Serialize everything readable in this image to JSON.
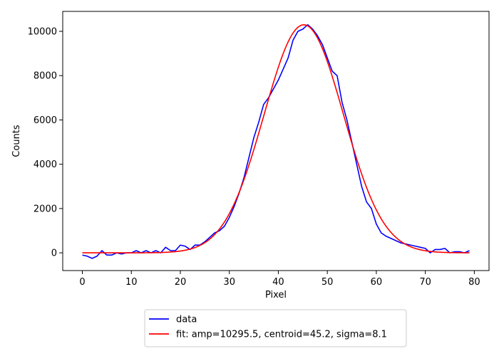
{
  "chart_data": {
    "type": "line",
    "title": "",
    "xlabel": "Pixel",
    "ylabel": "Counts",
    "xlim": [
      -4,
      83
    ],
    "ylim": [
      -800,
      10900
    ],
    "xticks": [
      0,
      10,
      20,
      30,
      40,
      50,
      60,
      70,
      80
    ],
    "yticks": [
      0,
      2000,
      4000,
      6000,
      8000,
      10000
    ],
    "grid": false,
    "legend_position": "below",
    "series": [
      {
        "name": "data",
        "color": "#0000ff",
        "x": [
          0,
          1,
          2,
          3,
          4,
          5,
          6,
          7,
          8,
          9,
          10,
          11,
          12,
          13,
          14,
          15,
          16,
          17,
          18,
          19,
          20,
          21,
          22,
          23,
          24,
          25,
          26,
          27,
          28,
          29,
          30,
          31,
          32,
          33,
          34,
          35,
          36,
          37,
          38,
          39,
          40,
          41,
          42,
          43,
          44,
          45,
          46,
          47,
          48,
          49,
          50,
          51,
          52,
          53,
          54,
          55,
          56,
          57,
          58,
          59,
          60,
          61,
          62,
          63,
          64,
          65,
          66,
          67,
          68,
          69,
          70,
          71,
          72,
          73,
          74,
          75,
          76,
          77,
          78,
          79
        ],
        "y": [
          -100,
          -150,
          -250,
          -150,
          100,
          -100,
          -100,
          0,
          -50,
          0,
          0,
          100,
          0,
          100,
          0,
          100,
          0,
          250,
          100,
          100,
          350,
          300,
          150,
          350,
          350,
          500,
          700,
          900,
          1000,
          1200,
          1600,
          2100,
          2700,
          3400,
          4300,
          5200,
          5900,
          6700,
          7000,
          7400,
          7800,
          8300,
          8800,
          9600,
          10000,
          10100,
          10300,
          10100,
          9800,
          9400,
          8800,
          8200,
          8000,
          6800,
          6000,
          5000,
          4000,
          3000,
          2300,
          2000,
          1300,
          900,
          750,
          650,
          550,
          450,
          400,
          350,
          300,
          250,
          200,
          0,
          150,
          150,
          200,
          0,
          50,
          50,
          0,
          100
        ]
      },
      {
        "name": "fit: amp=10295.5, centroid=45.2, sigma=8.1",
        "color": "#ff0000",
        "amp": 10295.5,
        "centroid": 45.2,
        "sigma": 8.1,
        "x_range": [
          0,
          79
        ]
      }
    ]
  }
}
